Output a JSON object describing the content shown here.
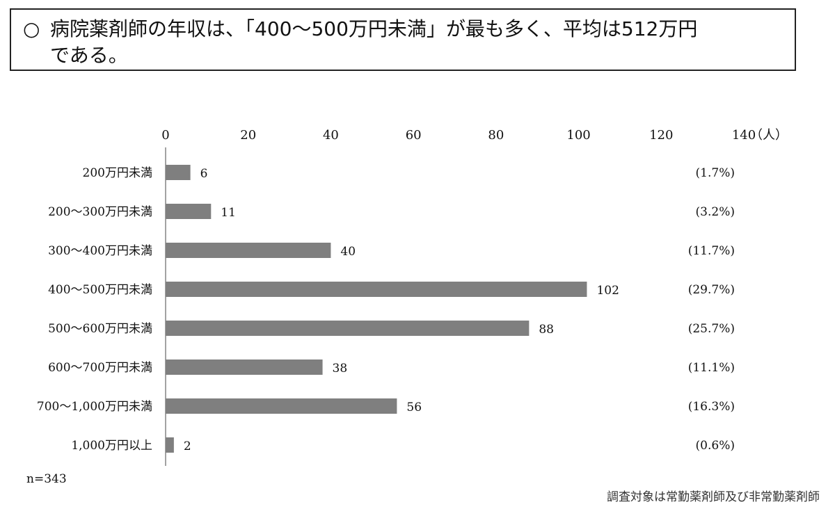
{
  "title": {
    "bullet": "○",
    "line1": "病院薬剤師の年収は、「400～500万円未満」が最も多く、平均は512万円",
    "line2": "である。"
  },
  "chart_data": {
    "type": "bar",
    "orientation": "horizontal",
    "categories": [
      "200万円未満",
      "200～300万円未満",
      "300～400万円未満",
      "400～500万円未満",
      "500～600万円未満",
      "600～700万円未満",
      "700～1,000万円未満",
      "1,000万円以上"
    ],
    "values": [
      6,
      11,
      40,
      102,
      88,
      38,
      56,
      2
    ],
    "percent_labels": [
      "(1.7%)",
      "(3.2%)",
      "(11.7%)",
      "(29.7%)",
      "(25.7%)",
      "(11.1%)",
      "(16.3%)",
      "(0.6%)"
    ],
    "xlim": [
      0,
      140
    ],
    "x_ticks": [
      0,
      20,
      40,
      60,
      80,
      100,
      120,
      140
    ],
    "x_unit": "（人）",
    "axis_position": "top",
    "grid": false,
    "bar_color": "#7f7f7f"
  },
  "notes": {
    "sample": "n=343",
    "source": "調査対象は常勤薬剤師及び非常勤薬剤師"
  }
}
